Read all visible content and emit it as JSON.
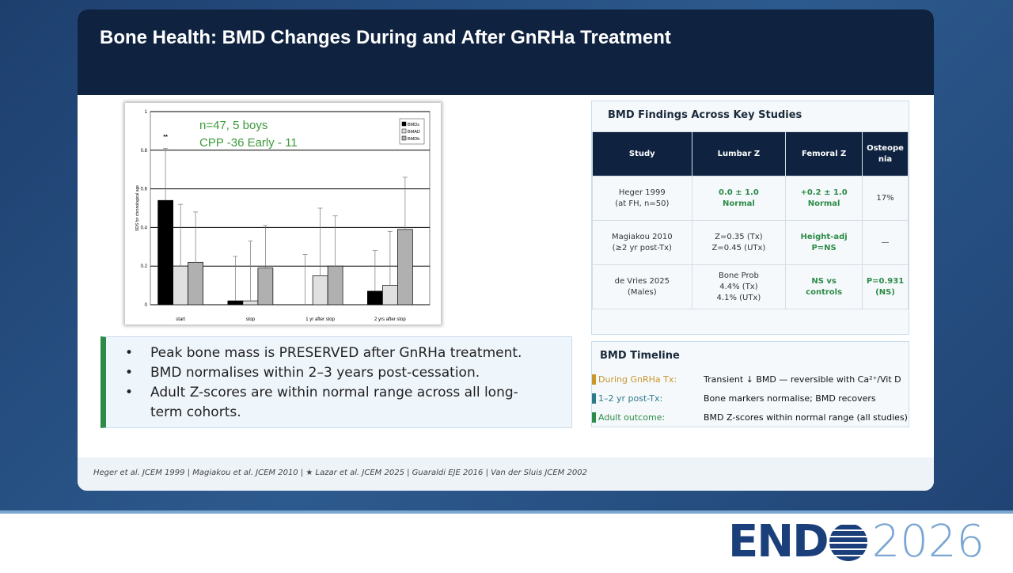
{
  "header": {
    "title": "Bone Health: BMD Changes During and After GnRHa Treatment"
  },
  "chart_data": {
    "type": "bar",
    "y_label": "SDS for chronological age",
    "annotations": [
      "n=47, 5 boys",
      "CPP -36  Early - 11",
      "**"
    ],
    "categories": [
      "start",
      "stop",
      "1 yr after stop",
      "2 yrs after stop"
    ],
    "series": [
      {
        "name": "BMDs",
        "color": "#000000",
        "values": [
          0.54,
          0.02,
          0,
          0.07
        ],
        "errors": [
          0.27,
          0.23,
          0.26,
          0.21
        ]
      },
      {
        "name": "BMAD",
        "color": "#e0e0e0",
        "values": [
          0.2,
          0.02,
          0.15,
          0.1
        ],
        "errors": [
          0.32,
          0.31,
          0.35,
          0.28
        ]
      },
      {
        "name": "BMDb",
        "color": "#b0b0b0",
        "values": [
          0.22,
          0.19,
          0.2,
          0.39
        ],
        "errors": [
          0.26,
          0.22,
          0.26,
          0.27
        ]
      }
    ],
    "ylim": [
      0,
      1
    ],
    "yticks": [
      0,
      0.2,
      0.4,
      0.6,
      0.8,
      1
    ],
    "grid": true
  },
  "bullets": [
    "Peak bone mass is PRESERVED after GnRHa treatment.",
    "BMD normalises within 2–3 years post-cessation.",
    "Adult Z-scores are within normal range across all long-term cohorts."
  ],
  "table": {
    "title": "BMD Findings Across Key Studies",
    "header": [
      "Study",
      "Lumbar Z",
      "Femoral Z",
      "Osteopenia"
    ],
    "rows": [
      [
        [
          "Heger 1999",
          "(at FH, n=50)"
        ],
        [
          "0.0 ± 1.0",
          "Normal"
        ],
        [
          "+0.2 ± 1.0",
          "Normal"
        ],
        [
          "17%"
        ]
      ],
      [
        [
          "Magiakou 2010",
          "(≥2 yr post-Tx)"
        ],
        [
          "Z=0.35 (Tx)",
          "Z=0.45 (UTx)"
        ],
        [
          "Height-adj",
          "P=NS"
        ],
        [
          "—"
        ]
      ],
      [
        [
          "de Vries 2025",
          "(Males)"
        ],
        [
          "Bone Prob",
          "4.4% (Tx)",
          "4.1% (UTx)"
        ],
        [
          "NS vs",
          "controls"
        ],
        [
          "P=0.931",
          "(NS)"
        ]
      ]
    ]
  },
  "timeline": {
    "title": "BMD Timeline",
    "items": [
      {
        "label": "During GnRHa Tx:",
        "text": "Transient ↓ BMD — reversible with Ca²⁺/Vit D"
      },
      {
        "label": "1–2 yr post-Tx:",
        "text": "Bone markers normalise; BMD recovers"
      },
      {
        "label": "Adult outcome:",
        "text": "BMD Z-scores within normal range (all studies)"
      }
    ]
  },
  "footer": "Heger et al. JCEM 1999 | Magiakou et al. JCEM 2010 | ★ Lazar et al. JCEM 2025 | Guaraldi EJE 2016  | Van der Sluis JCEM 2002",
  "logo": {
    "left": "END",
    "right": "2026"
  }
}
